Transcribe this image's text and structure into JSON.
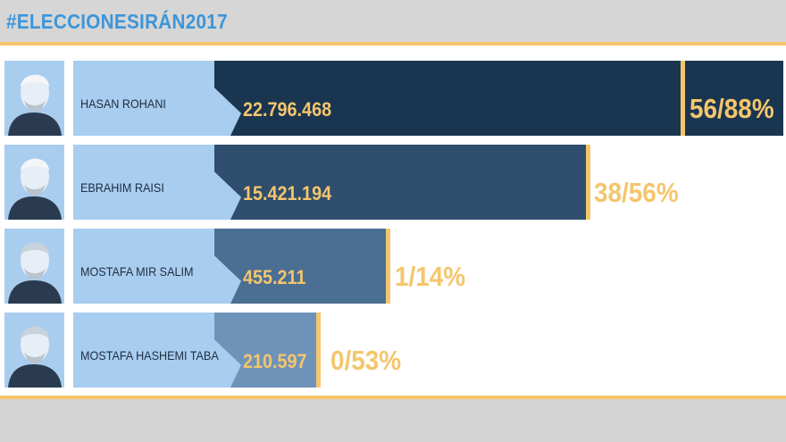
{
  "header": {
    "title": "#ELECCIONESIRÁN2017"
  },
  "chart_data": {
    "type": "bar",
    "title": "#ELECCIONESIRÁN2017",
    "categories": [
      "HASAN ROHANI",
      "EBRAHIM RAISI",
      "MOSTAFA MIR SALIM",
      "MOSTAFA HASHEMI TABA"
    ],
    "values": [
      22796468,
      15421194,
      455211,
      210597
    ],
    "value_labels": [
      "22.796.468",
      "15.421.194",
      "455.211",
      "210.597"
    ],
    "percent_labels": [
      "56/88%",
      "38/56%",
      "1/14%",
      "0/53%"
    ],
    "percents": [
      56.88,
      38.56,
      1.14,
      0.53
    ],
    "xlabel": "",
    "ylabel": ""
  },
  "colors": {
    "accent": "#f4c66c",
    "title": "#3d95d9",
    "name_box": "#a8cdef",
    "bars": [
      "#1a3550",
      "#2f4e6e",
      "#4b6e93",
      "#6f93b8"
    ]
  }
}
